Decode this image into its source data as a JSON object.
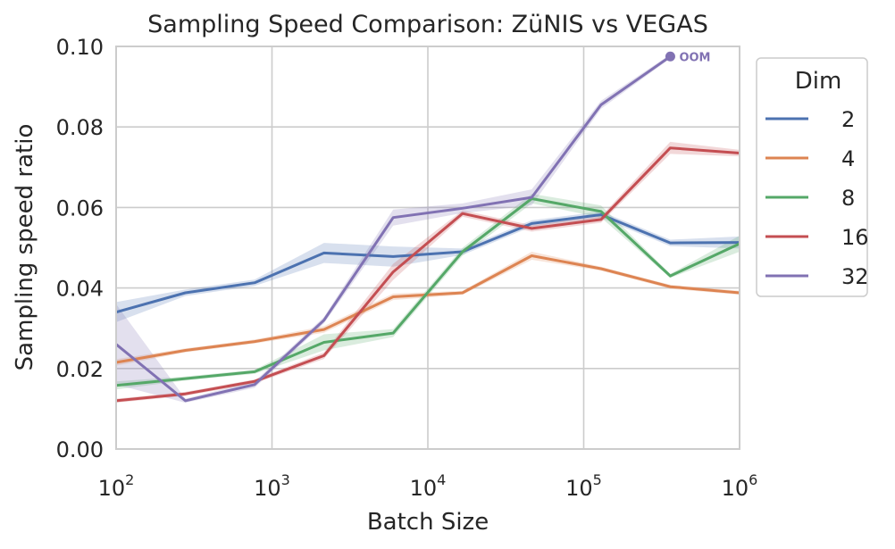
{
  "chart_data": {
    "type": "line",
    "title": "Sampling Speed Comparison: ZüNIS vs VEGAS",
    "xlabel": "Batch Size",
    "ylabel": "Sampling speed ratio",
    "xscale": "log",
    "xlim": [
      100,
      1000000
    ],
    "ylim": [
      0.0,
      0.1
    ],
    "grid": true,
    "x_ticks": [
      {
        "base": "10",
        "exp": "2",
        "value": 100
      },
      {
        "base": "10",
        "exp": "3",
        "value": 1000
      },
      {
        "base": "10",
        "exp": "4",
        "value": 10000
      },
      {
        "base": "10",
        "exp": "5",
        "value": 100000
      },
      {
        "base": "10",
        "exp": "6",
        "value": 1000000
      }
    ],
    "y_ticks": [
      {
        "label": "0.00",
        "value": 0.0
      },
      {
        "label": "0.02",
        "value": 0.02
      },
      {
        "label": "0.04",
        "value": 0.04
      },
      {
        "label": "0.06",
        "value": 0.06
      },
      {
        "label": "0.08",
        "value": 0.08
      },
      {
        "label": "0.10",
        "value": 0.1
      }
    ],
    "legend": {
      "title": "Dim",
      "position": "outside-right"
    },
    "x": [
      100,
      278,
      774,
      2154,
      5995,
      16681,
      46416,
      129155,
      359381,
      1000000
    ],
    "series": [
      {
        "name": "2",
        "color": "#4c72b0",
        "values": [
          0.034,
          0.0388,
          0.0413,
          0.0487,
          0.0478,
          0.049,
          0.056,
          0.0582,
          0.0512,
          0.0513
        ],
        "band": [
          0.0025,
          0.0008,
          0.0008,
          0.0025,
          0.0025,
          0.0008,
          0.0008,
          0.0008,
          0.0008,
          0.0015
        ]
      },
      {
        "name": "4",
        "color": "#dd8452",
        "values": [
          0.0215,
          0.0245,
          0.0267,
          0.0297,
          0.0378,
          0.0388,
          0.048,
          0.0448,
          0.0403,
          0.0388
        ],
        "band": [
          0.0008,
          0.0005,
          0.0005,
          0.0008,
          0.0008,
          0.0005,
          0.001,
          0.0005,
          0.0005,
          0.0005
        ]
      },
      {
        "name": "8",
        "color": "#55a868",
        "values": [
          0.0158,
          0.0175,
          0.0192,
          0.0265,
          0.0288,
          0.049,
          0.0622,
          0.059,
          0.043,
          0.051
        ],
        "band": [
          0.001,
          0.0005,
          0.0005,
          0.002,
          0.001,
          0.001,
          0.0012,
          0.0015,
          0.0005,
          0.002
        ]
      },
      {
        "name": "16",
        "color": "#c44e52",
        "values": [
          0.012,
          0.0137,
          0.0168,
          0.0232,
          0.044,
          0.0585,
          0.0548,
          0.057,
          0.0748,
          0.0735
        ],
        "band": [
          0.0005,
          0.0005,
          0.0005,
          0.0008,
          0.002,
          0.0008,
          0.0008,
          0.0008,
          0.0015,
          0.0008
        ]
      },
      {
        "name": "32",
        "color": "#8172b3",
        "values": [
          0.026,
          0.012,
          0.016,
          0.032,
          0.0575,
          0.0598,
          0.0625,
          0.0855,
          0.0975,
          null
        ],
        "band": [
          0.01,
          0.0005,
          0.0008,
          0.0008,
          0.002,
          0.0012,
          0.002,
          0.001,
          0.0005,
          null
        ]
      }
    ],
    "annotations": [
      {
        "text": "OOM",
        "series": "32",
        "x": 359381,
        "y": 0.0975
      }
    ]
  }
}
